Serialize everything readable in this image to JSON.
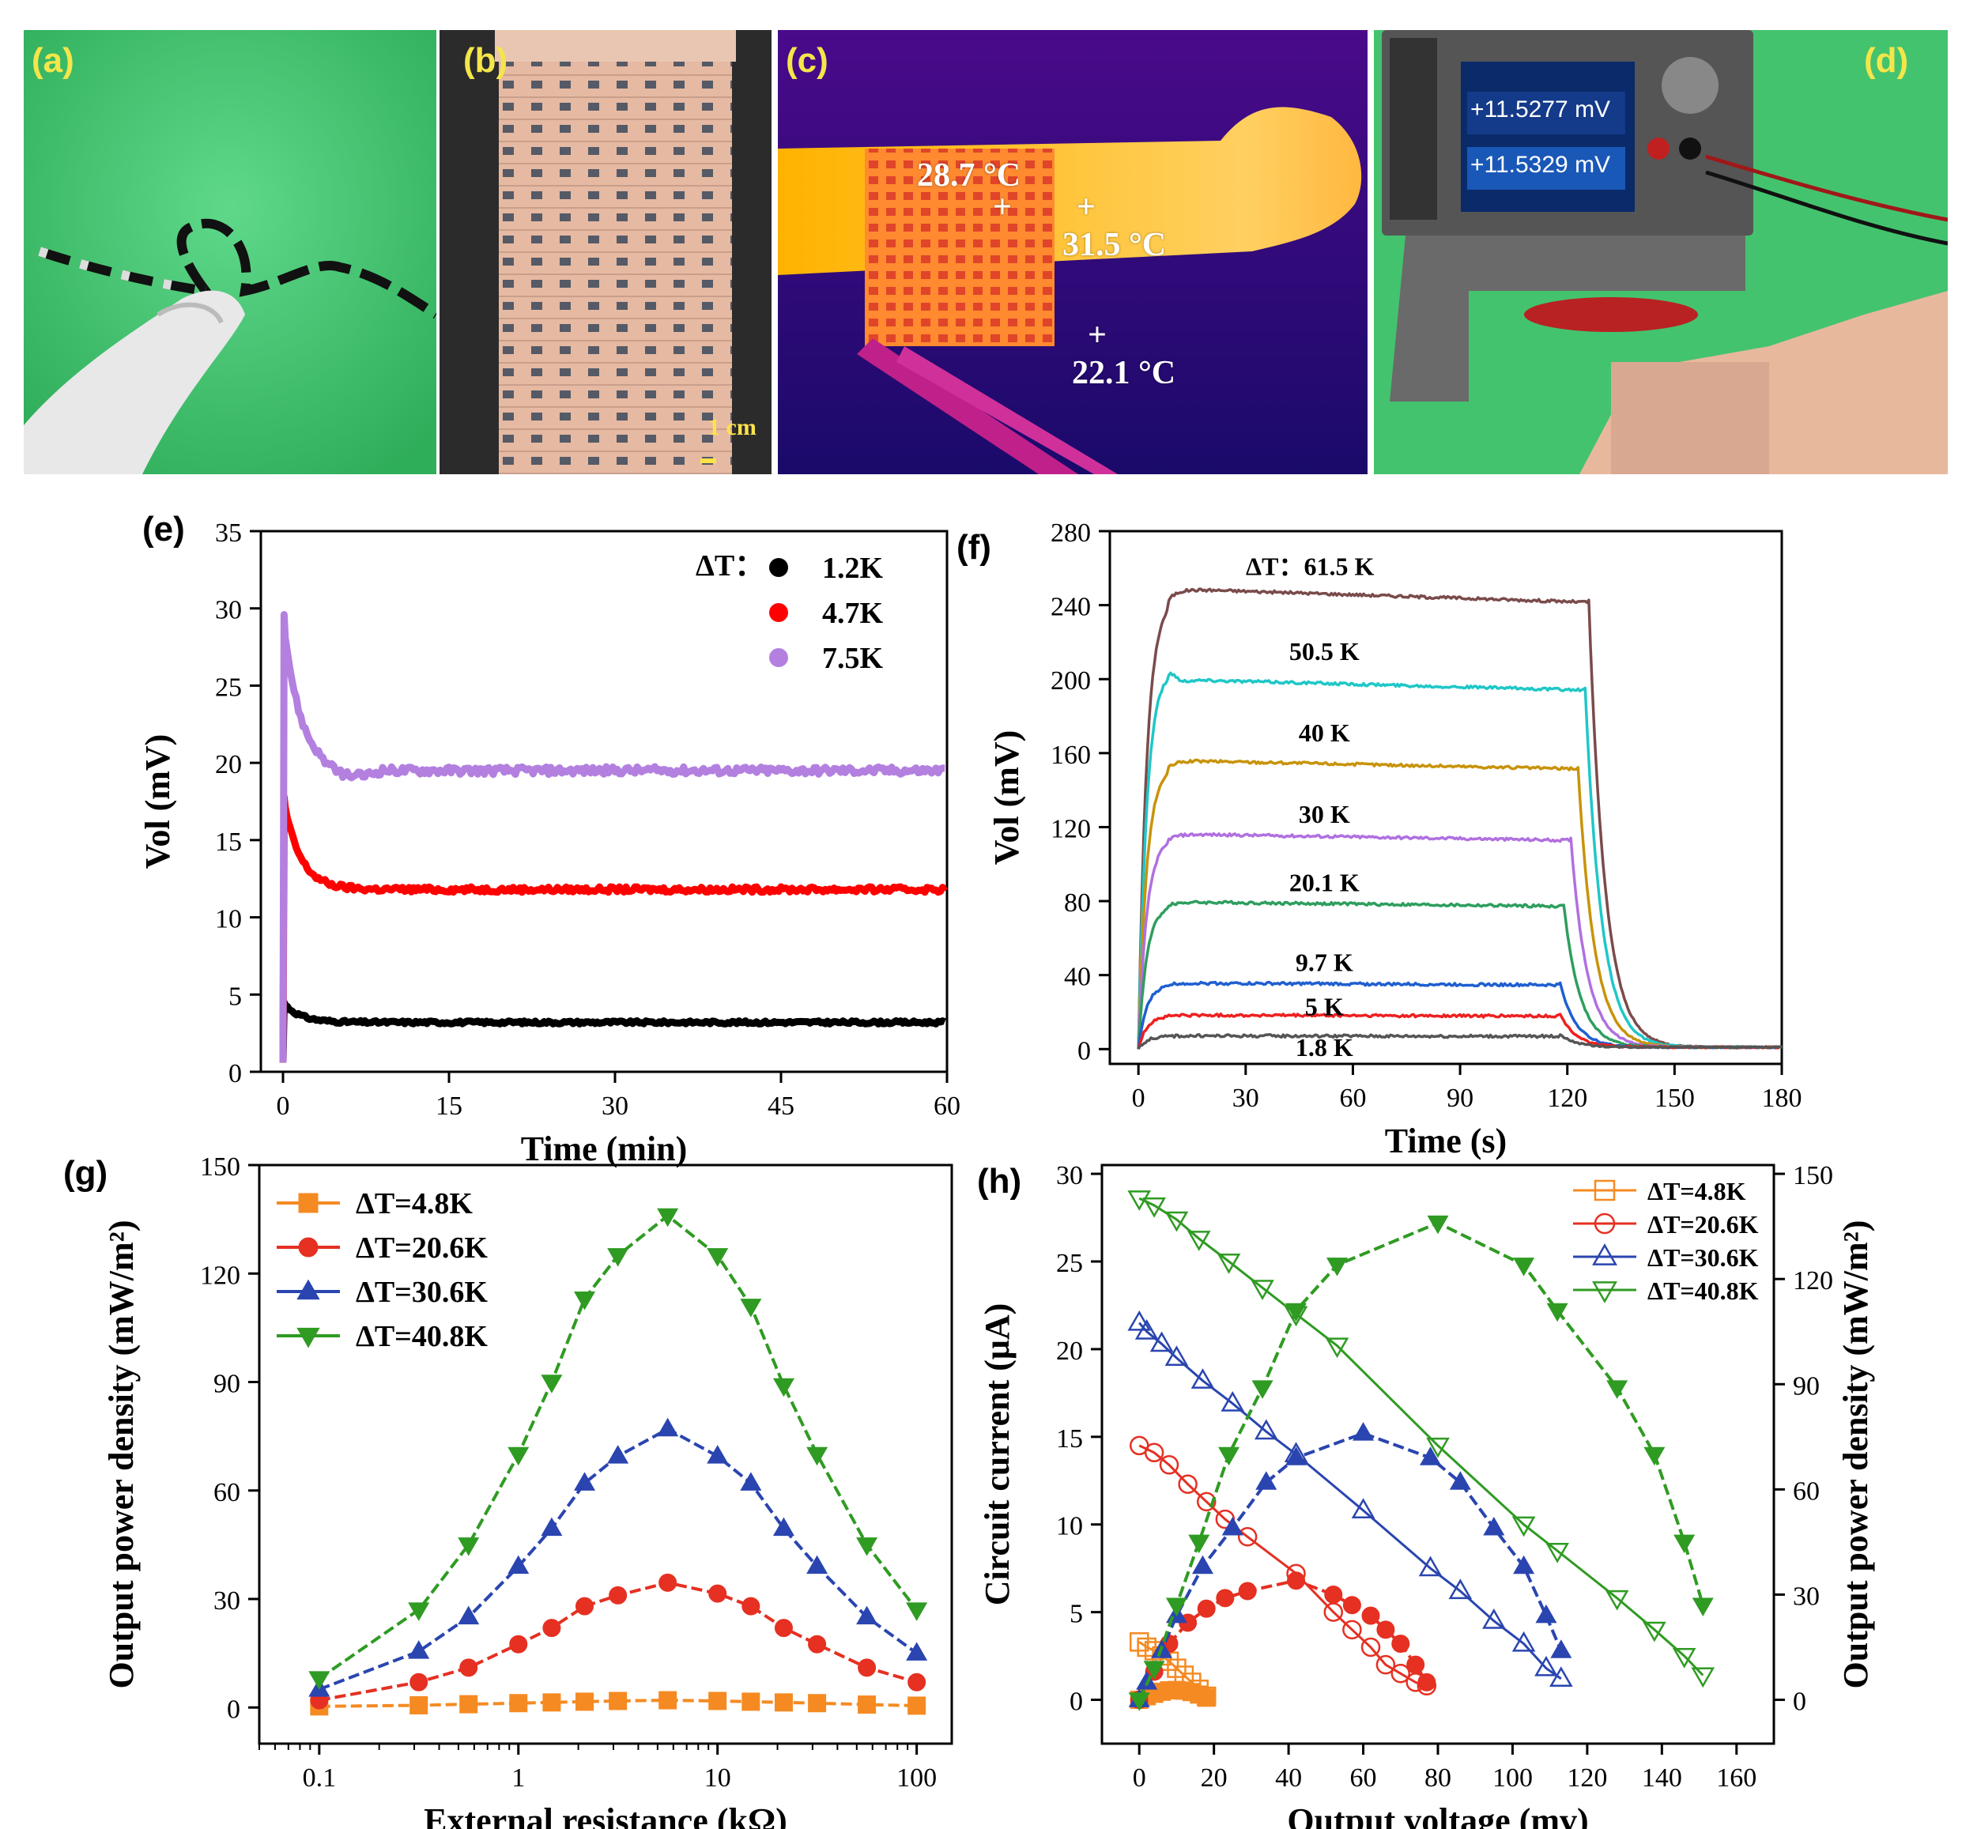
{
  "photos": {
    "a": {
      "label": "(a)"
    },
    "b": {
      "label": "(b)",
      "scale_label": "1 cm"
    },
    "c": {
      "label": "(c)",
      "t1": "28.7 °C",
      "t2": "31.5 °C",
      "t3": "22.1 °C"
    },
    "d": {
      "label": "(d)",
      "reading1": "+11.5277 mV",
      "reading2": "+11.5329 mV"
    }
  },
  "colors": {
    "photo_green": "#3fbf6c",
    "thermal_bg": "#2a0a7a",
    "thermal_hot": "#ffb000"
  },
  "chart_data": [
    {
      "id": "e",
      "label": "(e)",
      "type": "line",
      "xlabel": "Time (min)",
      "ylabel": "Vol (mV)",
      "xlim": [
        -2,
        60
      ],
      "ylim": [
        0,
        35
      ],
      "xticks": [
        0,
        15,
        30,
        45,
        60
      ],
      "yticks": [
        0,
        5,
        10,
        15,
        20,
        25,
        30,
        35
      ],
      "legend_title": "ΔT：",
      "series": [
        {
          "name": "1.2K",
          "color": "#000000",
          "peak": 4.5,
          "steady": 3.2
        },
        {
          "name": "4.7K",
          "color": "#ff0000",
          "peak": 17.8,
          "steady": 11.8
        },
        {
          "name": "7.5K",
          "color": "#b380e0",
          "peak": 29.6,
          "steady": 19.5
        }
      ]
    },
    {
      "id": "f",
      "label": "(f)",
      "type": "line",
      "xlabel": "Time (s)",
      "ylabel": "Vol (mV)",
      "xlim": [
        -8,
        180
      ],
      "ylim": [
        -8,
        280
      ],
      "xticks": [
        0,
        30,
        60,
        90,
        120,
        150,
        180
      ],
      "yticks": [
        0,
        40,
        80,
        120,
        160,
        200,
        240,
        280
      ],
      "series": [
        {
          "name": "ΔT：61.5 K",
          "color": "#7a4b4b",
          "plateau": 244,
          "end": 126
        },
        {
          "name": "50.5 K",
          "color": "#1fc7c7",
          "plateau": 196,
          "end": 125
        },
        {
          "name": "40 K",
          "color": "#c8930a",
          "plateau": 153,
          "end": 123
        },
        {
          "name": "30 K",
          "color": "#b070e0",
          "plateau": 114,
          "end": 121
        },
        {
          "name": "20.1 K",
          "color": "#2e9e5e",
          "plateau": 78,
          "end": 119
        },
        {
          "name": "9.7 K",
          "color": "#1f5fd0",
          "plateau": 35,
          "end": 118
        },
        {
          "name": "5 K",
          "color": "#ee2020",
          "plateau": 18,
          "end": 118
        },
        {
          "name": "1.8 K",
          "color": "#555555",
          "plateau": 7,
          "end": 118
        }
      ]
    },
    {
      "id": "g",
      "label": "(g)",
      "type": "line",
      "xlabel": "External resistance (kΩ)",
      "ylabel": "Output power density (mW/m²)",
      "xscale": "log",
      "xlim": [
        0.05,
        150
      ],
      "ylim": [
        -10,
        150
      ],
      "xticks": [
        0.1,
        1,
        10,
        100
      ],
      "xtick_labels": [
        "0.1",
        "1",
        "10",
        "100"
      ],
      "yticks": [
        0,
        30,
        60,
        90,
        120,
        150
      ],
      "x": [
        0.1,
        0.316,
        0.562,
        1.0,
        1.47,
        2.15,
        3.16,
        5.62,
        10.0,
        14.7,
        21.5,
        31.6,
        56.2,
        100
      ],
      "series": [
        {
          "name": "ΔT=4.8K",
          "color": "#f58a22",
          "marker": "square",
          "values": [
            0.3,
            0.6,
            0.9,
            1.2,
            1.4,
            1.6,
            1.8,
            2.0,
            1.8,
            1.6,
            1.4,
            1.2,
            0.8,
            0.5
          ]
        },
        {
          "name": "ΔT=20.6K",
          "color": "#e53022",
          "marker": "circle",
          "values": [
            2,
            7,
            11,
            17.5,
            22,
            28,
            31,
            34.5,
            31.5,
            28,
            22,
            17.5,
            11,
            7
          ]
        },
        {
          "name": "ΔT=30.6K",
          "color": "#2a45b0",
          "marker": "triangle-up",
          "values": [
            5,
            15.5,
            25,
            39,
            49.5,
            62,
            69.5,
            77,
            69.5,
            62,
            49.5,
            39,
            25,
            15
          ]
        },
        {
          "name": "ΔT=40.8K",
          "color": "#2f9b22",
          "marker": "triangle-down",
          "values": [
            8,
            27,
            45,
            70,
            90,
            113,
            125,
            136,
            125,
            111,
            89,
            70,
            45,
            27
          ]
        }
      ]
    },
    {
      "id": "h",
      "label": "(h)",
      "type": "line",
      "xlabel": "Output voltage (mv)",
      "ylabel": "Circuit current (μA)",
      "ylabel_right": "Output power density (mW/m²)",
      "xlim": [
        -10,
        170
      ],
      "ylim": [
        -2.5,
        30.5
      ],
      "ylim_right": [
        -12.5,
        152.5
      ],
      "xticks": [
        0,
        20,
        40,
        60,
        80,
        100,
        120,
        140,
        160
      ],
      "yticks": [
        0,
        5,
        10,
        15,
        20,
        25,
        30
      ],
      "yticks_right": [
        0,
        30,
        60,
        90,
        120,
        150
      ],
      "series": [
        {
          "name": "ΔT=4.8K",
          "color": "#f58a22",
          "marker": "square",
          "voltage": [
            0,
            2,
            4,
            6,
            8,
            10,
            12,
            14,
            16,
            18
          ],
          "current": [
            3.3,
            3.0,
            2.8,
            2.5,
            2.2,
            1.8,
            1.4,
            1.0,
            0.6,
            0.2
          ],
          "power": [
            0,
            1.0,
            1.7,
            2.3,
            2.7,
            2.8,
            2.6,
            2.2,
            1.5,
            0.6
          ]
        },
        {
          "name": "ΔT=20.6K",
          "color": "#e53022",
          "marker": "circle",
          "voltage": [
            0,
            4,
            8,
            13,
            18,
            23,
            29,
            42,
            52,
            57,
            62,
            66,
            70,
            74,
            77
          ],
          "current": [
            14.5,
            14.1,
            13.4,
            12.3,
            11.3,
            10.3,
            9.3,
            7.2,
            5.0,
            4.0,
            3.0,
            2.0,
            1.5,
            1.0,
            0.8
          ],
          "power": [
            0,
            8,
            16,
            22,
            26,
            29,
            31,
            34,
            30,
            27,
            24,
            20,
            16,
            10,
            5
          ]
        },
        {
          "name": "ΔT=30.6K",
          "color": "#2a45b0",
          "marker": "triangle-up",
          "voltage": [
            0,
            2,
            6,
            10,
            17,
            25,
            34,
            42,
            60,
            78,
            86,
            95,
            103,
            109,
            113
          ],
          "current": [
            21.5,
            21.0,
            20.3,
            19.5,
            18.2,
            16.9,
            15.3,
            14.0,
            10.8,
            7.5,
            6.2,
            4.5,
            3.2,
            1.8,
            1.2
          ],
          "power": [
            0,
            5,
            14,
            24,
            38,
            49,
            62,
            69,
            76,
            69,
            62,
            49,
            38,
            24,
            14
          ]
        },
        {
          "name": "ΔT=40.8K",
          "color": "#2f9b22",
          "marker": "triangle-down",
          "voltage": [
            0,
            4,
            10,
            16,
            24,
            33,
            42,
            53,
            80,
            103,
            112,
            128,
            138,
            146,
            151
          ],
          "current": [
            28.6,
            28.2,
            27.4,
            26.3,
            25.0,
            23.5,
            22.0,
            20.2,
            14.5,
            10.0,
            8.5,
            5.8,
            4.0,
            2.5,
            1.4
          ],
          "power": [
            0,
            9,
            27,
            45,
            70,
            89,
            111,
            124,
            136,
            124,
            111,
            89,
            70,
            45,
            27
          ]
        }
      ]
    }
  ]
}
